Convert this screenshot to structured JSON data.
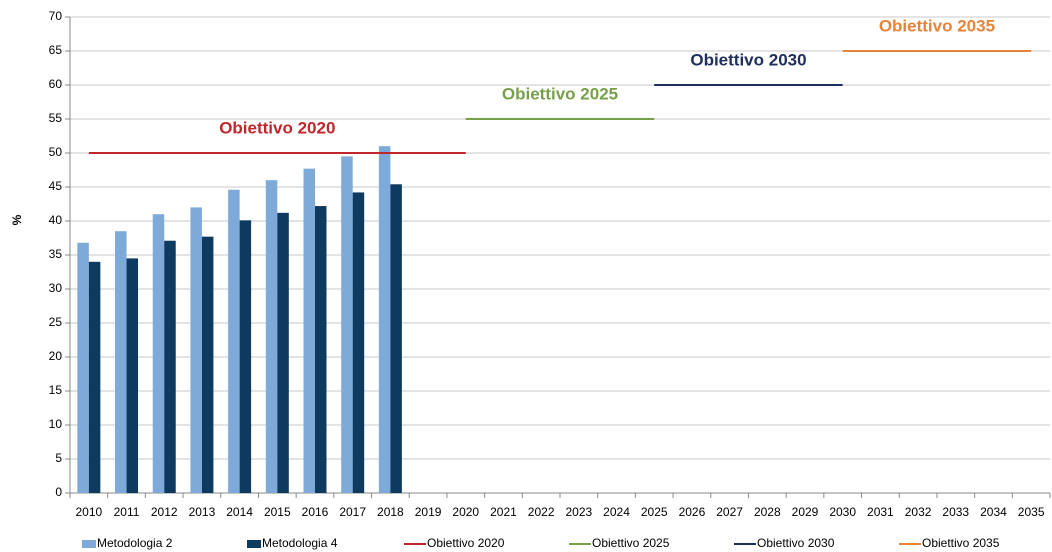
{
  "chart_data": {
    "type": "bar",
    "y_label": "%",
    "categories": [
      "2010",
      "2011",
      "2012",
      "2013",
      "2014",
      "2015",
      "2016",
      "2017",
      "2018",
      "2019",
      "2020",
      "2021",
      "2022",
      "2023",
      "2024",
      "2025",
      "2026",
      "2027",
      "2028",
      "2029",
      "2030",
      "2031",
      "2032",
      "2033",
      "2034",
      "2035"
    ],
    "series": [
      {
        "name": "Metodologia 2",
        "color": "#7eaad9",
        "type": "bar",
        "values": [
          36.8,
          38.5,
          41,
          42,
          44.6,
          46,
          47.7,
          49.5,
          51,
          null,
          null,
          null,
          null,
          null,
          null,
          null,
          null,
          null,
          null,
          null,
          null,
          null,
          null,
          null,
          null,
          null
        ]
      },
      {
        "name": "Metodologia 4",
        "color": "#0d3a5e",
        "type": "bar",
        "values": [
          34,
          34.5,
          37.1,
          37.7,
          40.1,
          41.2,
          42.2,
          44.2,
          45.4,
          null,
          null,
          null,
          null,
          null,
          null,
          null,
          null,
          null,
          null,
          null,
          null,
          null,
          null,
          null,
          null,
          null
        ]
      },
      {
        "name": "Obiettivo 2020",
        "color": "#c0272d",
        "type": "line",
        "values": [
          50,
          50,
          50,
          50,
          50,
          50,
          50,
          50,
          50,
          50,
          50,
          null,
          null,
          null,
          null,
          null,
          null,
          null,
          null,
          null,
          null,
          null,
          null,
          null,
          null,
          null
        ]
      },
      {
        "name": "Obiettivo 2025",
        "color": "#77a04a",
        "type": "line",
        "values": [
          null,
          null,
          null,
          null,
          null,
          null,
          null,
          null,
          null,
          null,
          55,
          55,
          55,
          55,
          55,
          55,
          null,
          null,
          null,
          null,
          null,
          null,
          null,
          null,
          null,
          null
        ]
      },
      {
        "name": "Obiettivo 2030",
        "color": "#1f2f5c",
        "type": "line",
        "values": [
          null,
          null,
          null,
          null,
          null,
          null,
          null,
          null,
          null,
          null,
          null,
          null,
          null,
          null,
          null,
          60,
          60,
          60,
          60,
          60,
          60,
          null,
          null,
          null,
          null,
          null
        ]
      },
      {
        "name": "Obiettivo 2035",
        "color": "#e8833a",
        "type": "line",
        "values": [
          null,
          null,
          null,
          null,
          null,
          null,
          null,
          null,
          null,
          null,
          null,
          null,
          null,
          null,
          null,
          null,
          null,
          null,
          null,
          null,
          65,
          65,
          65,
          65,
          65,
          65
        ]
      }
    ],
    "annotations": [
      {
        "text": "Obiettivo 2020",
        "color": "#c0272d"
      },
      {
        "text": "Obiettivo 2025",
        "color": "#77a04a"
      },
      {
        "text": "Obiettivo 2030",
        "color": "#1f2f5c"
      },
      {
        "text": "Obiettivo 2035",
        "color": "#e8833a"
      }
    ],
    "ylim": [
      0,
      70
    ],
    "yticks": [
      0,
      5,
      10,
      15,
      20,
      25,
      30,
      35,
      40,
      45,
      50,
      55,
      60,
      65,
      70
    ],
    "grid": true,
    "legend": "bottom"
  }
}
